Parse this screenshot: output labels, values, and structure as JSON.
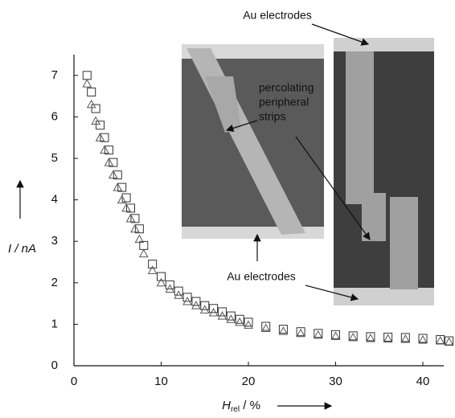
{
  "chart_data": {
    "type": "scatter",
    "x_label": [
      "H",
      "rel",
      " / %"
    ],
    "y_label": "I / nA",
    "annotations": {
      "top": "Au electrodes",
      "middle": [
        "percolating",
        "peripheral",
        "strips"
      ],
      "bottom": "Au electrodes"
    },
    "x": [
      1.5,
      2,
      2.5,
      3,
      3.5,
      4,
      4.5,
      5,
      5.5,
      6,
      6.5,
      7,
      7.5,
      8,
      9,
      10,
      11,
      12,
      13,
      14,
      15,
      16,
      17,
      18,
      19,
      20,
      22,
      24,
      26,
      28,
      30,
      32,
      34,
      36,
      38,
      40,
      42,
      43
    ],
    "series": [
      {
        "marker": "square",
        "color": "#333333",
        "values": [
          7.0,
          6.6,
          6.2,
          5.8,
          5.5,
          5.2,
          4.9,
          4.6,
          4.3,
          4.05,
          3.8,
          3.55,
          3.3,
          2.9,
          2.45,
          2.15,
          1.95,
          1.8,
          1.65,
          1.55,
          1.45,
          1.38,
          1.3,
          1.2,
          1.12,
          1.05,
          0.95,
          0.88,
          0.82,
          0.78,
          0.75,
          0.72,
          0.7,
          0.69,
          0.68,
          0.66,
          0.63,
          0.6
        ]
      },
      {
        "marker": "triangle",
        "color": "#555555",
        "values": [
          6.8,
          6.3,
          5.9,
          5.5,
          5.2,
          4.9,
          4.6,
          4.3,
          4.0,
          3.8,
          3.55,
          3.3,
          3.05,
          2.7,
          2.3,
          2.0,
          1.85,
          1.7,
          1.55,
          1.45,
          1.35,
          1.28,
          1.2,
          1.12,
          1.05,
          0.98,
          0.9,
          0.83,
          0.78,
          0.74,
          0.71,
          0.68,
          0.66,
          0.65,
          0.64,
          0.62,
          0.6,
          0.57
        ]
      }
    ],
    "xlim": [
      0,
      43.5
    ],
    "ylim": [
      0,
      7.5
    ],
    "xticks": [
      0,
      10,
      20,
      30,
      40
    ],
    "yticks": [
      0,
      1,
      2,
      3,
      4,
      5,
      6,
      7
    ]
  }
}
